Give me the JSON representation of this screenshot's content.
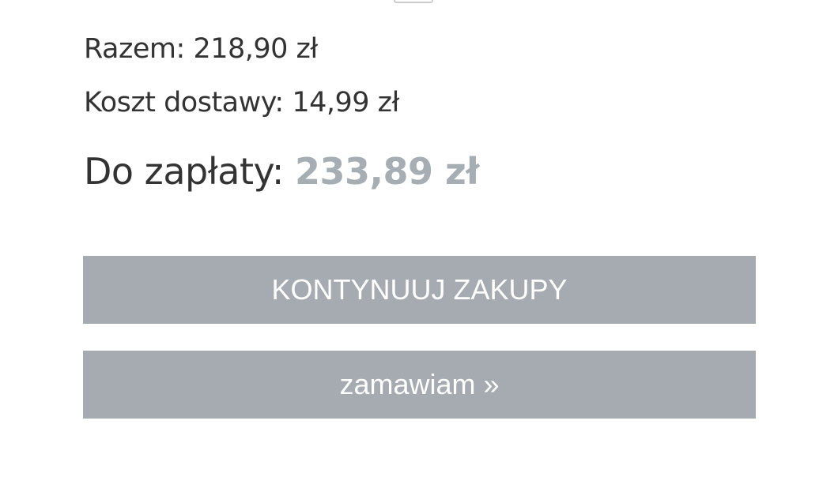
{
  "summary": {
    "subtotal_label": "Razem:",
    "subtotal_value": "218,90 zł",
    "shipping_label": "Koszt dostawy:",
    "shipping_value": "14,99 zł",
    "total_label": "Do zapłaty:",
    "total_value": "233,89 zł"
  },
  "buttons": {
    "continue_label": "KONTYNUUJ ZAKUPY",
    "order_label": "zamawiam »"
  },
  "colors": {
    "button_bg": "#a5abb0",
    "total_value": "#a6adb3"
  }
}
